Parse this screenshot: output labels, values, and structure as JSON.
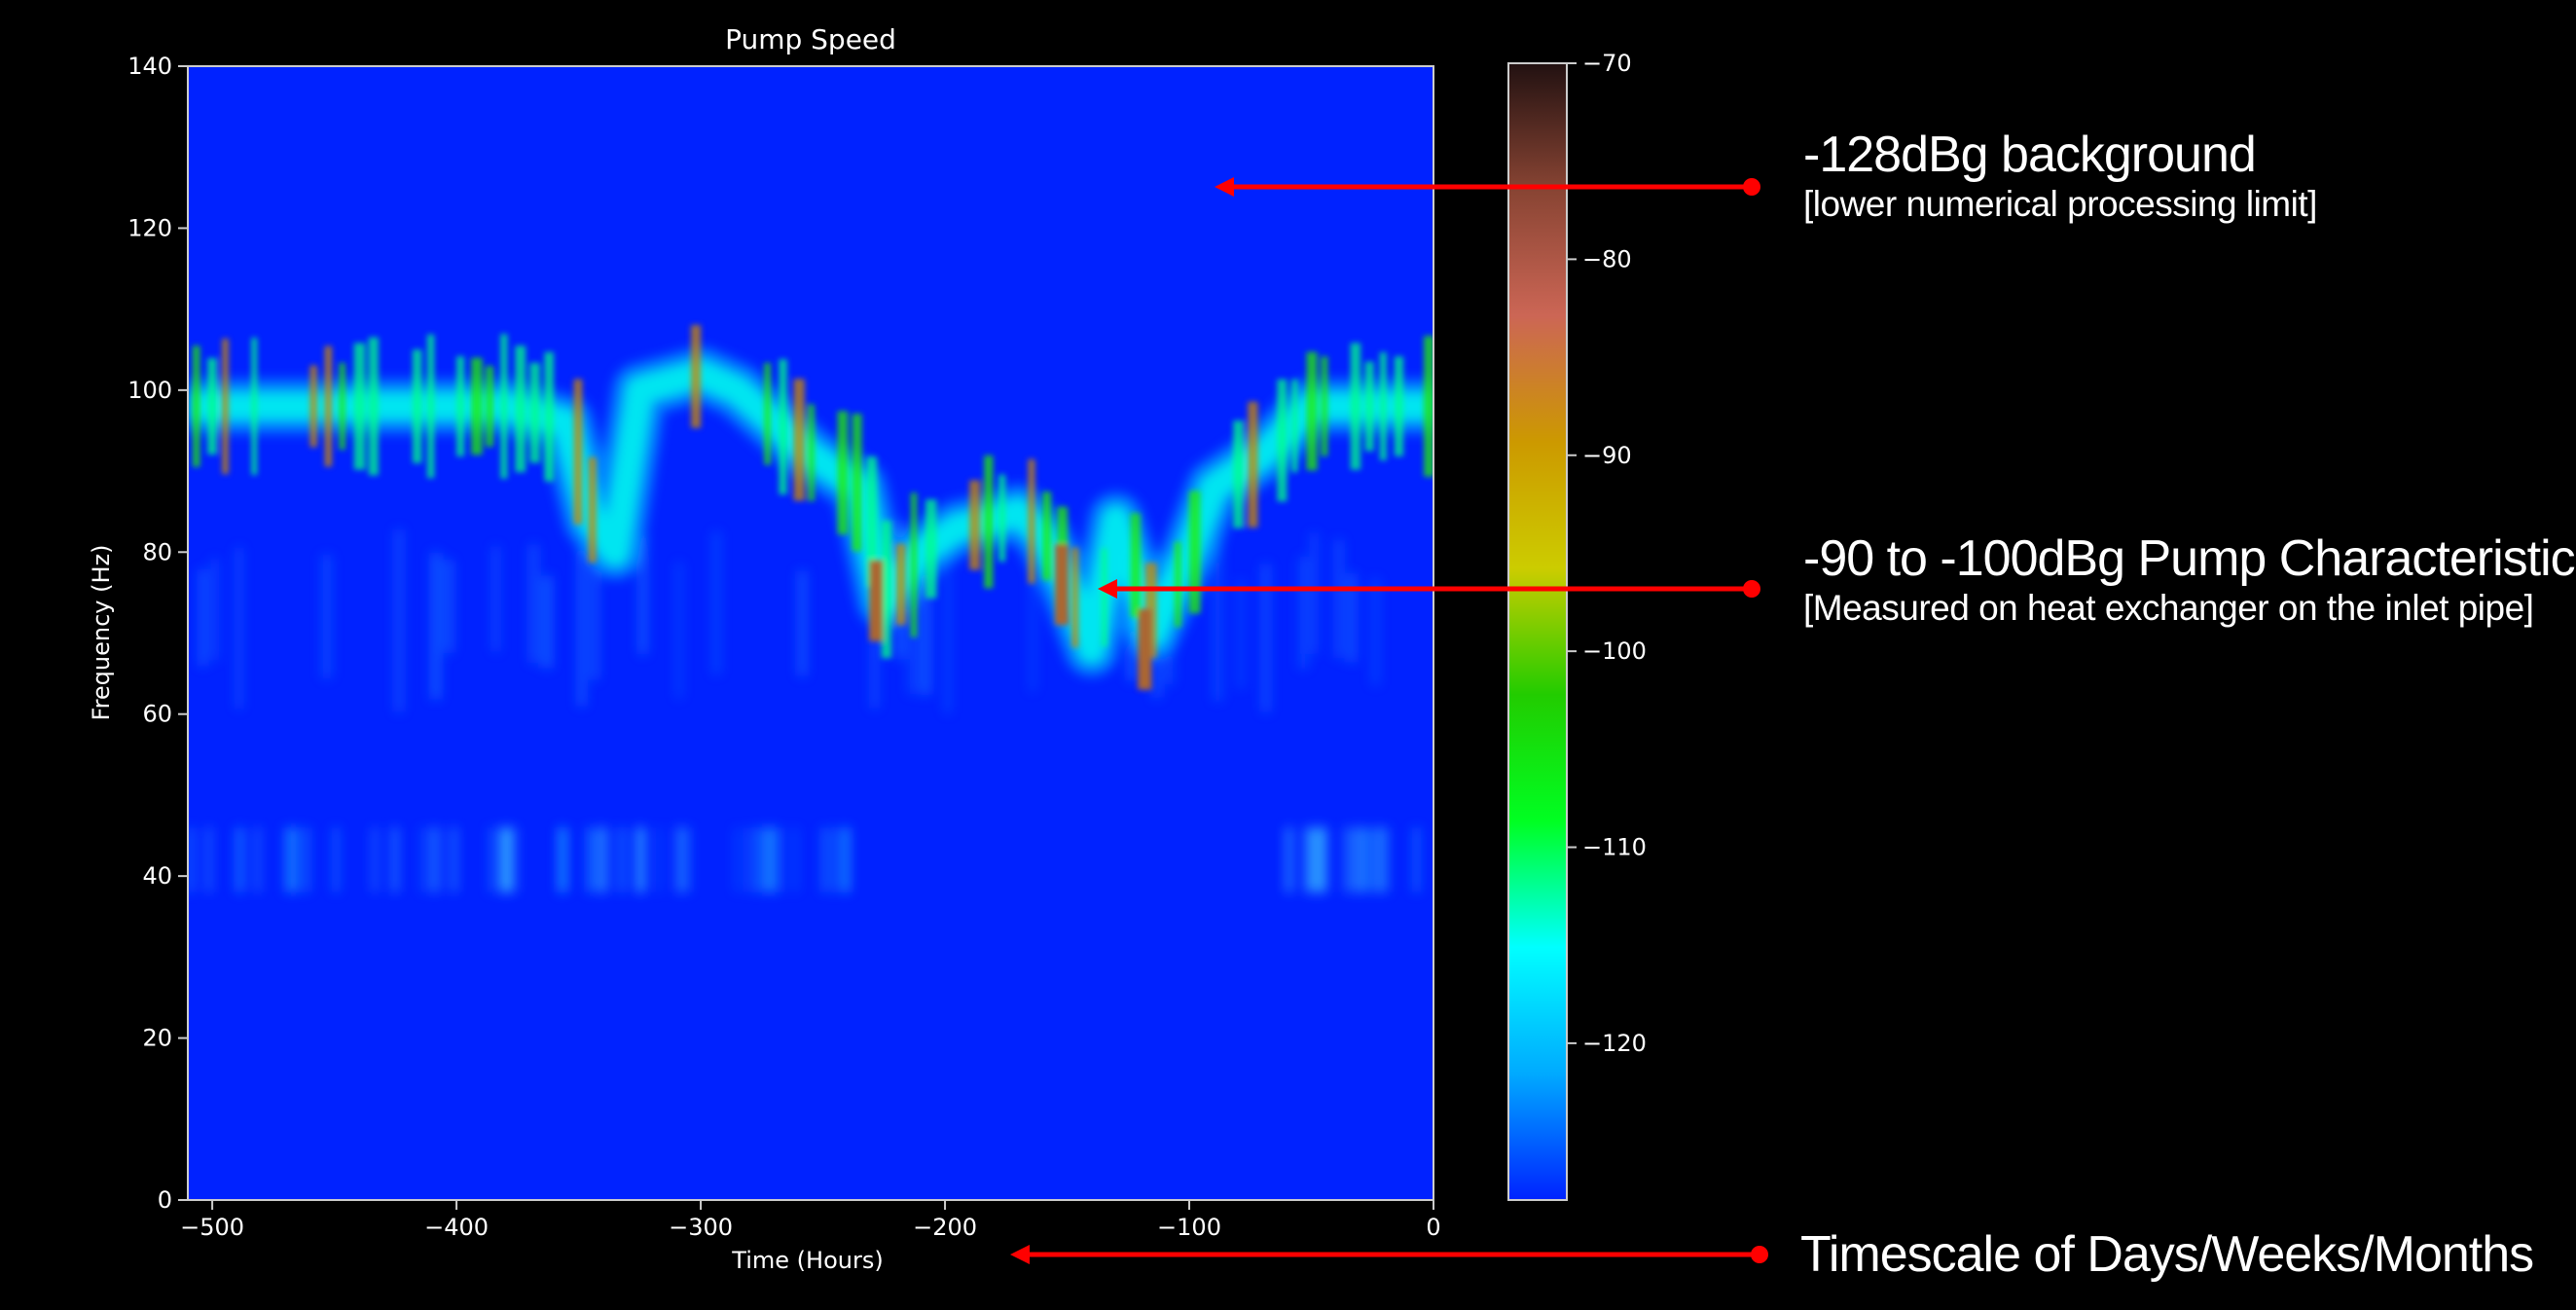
{
  "chart_data": {
    "type": "heatmap",
    "title": "Pump Speed",
    "xlabel": "Time (Hours)",
    "ylabel": "Frequency (Hz)",
    "xlim": [
      -510,
      0
    ],
    "ylim": [
      0,
      140
    ],
    "x_ticks": [
      -500,
      -400,
      -300,
      -200,
      -100,
      0
    ],
    "y_ticks": [
      0,
      20,
      40,
      60,
      80,
      100,
      120,
      140
    ],
    "colorbar": {
      "range": [
        -128,
        -70
      ],
      "ticks": [
        -70,
        -80,
        -90,
        -100,
        -110,
        -120
      ],
      "colormap": [
        "#0022ff",
        "#00aaff",
        "#00ffff",
        "#00ff22",
        "#22cc00",
        "#cccc00",
        "#cc9900",
        "#cc6655",
        "#884433",
        "#221111"
      ]
    },
    "background_level_dBg": -128,
    "bands": [
      {
        "name": "pump-track",
        "level_dBg": [
          -100,
          -90
        ],
        "path": [
          [
            -510,
            98
          ],
          [
            -460,
            98
          ],
          [
            -380,
            98
          ],
          [
            -355,
            96
          ],
          [
            -345,
            84
          ],
          [
            -335,
            80
          ],
          [
            -325,
            100
          ],
          [
            -300,
            102
          ],
          [
            -285,
            100
          ],
          [
            -270,
            96
          ],
          [
            -255,
            92
          ],
          [
            -235,
            88
          ],
          [
            -225,
            74
          ],
          [
            -210,
            80
          ],
          [
            -195,
            83
          ],
          [
            -180,
            84
          ],
          [
            -170,
            85
          ],
          [
            -160,
            82
          ],
          [
            -150,
            76
          ],
          [
            -140,
            68
          ],
          [
            -130,
            84
          ],
          [
            -115,
            70
          ],
          [
            -100,
            80
          ],
          [
            -90,
            88
          ],
          [
            -70,
            92
          ],
          [
            -50,
            98
          ],
          [
            0,
            98
          ]
        ]
      },
      {
        "name": "40hz-band",
        "level_dBg": [
          -125,
          -115
        ],
        "x_range": [
          -510,
          -240
        ],
        "y_center": 42
      },
      {
        "name": "40hz-band-end",
        "level_dBg": [
          -125,
          -115
        ],
        "x_range": [
          -60,
          0
        ],
        "y_center": 42
      }
    ]
  },
  "annotations": [
    {
      "main": "-128dBg background",
      "sub": "[lower numerical processing limit]"
    },
    {
      "main": "-90 to -100dBg  Pump Characteristic.",
      "sub": "[Measured on heat exchanger on the inlet pipe]"
    },
    {
      "main": "Timescale of Days/Weeks/Months",
      "sub": ""
    }
  ],
  "colors": {
    "background": "#000000",
    "plot_background": "#0022ff",
    "arrow": "#ff0000",
    "text": "#ffffff"
  }
}
